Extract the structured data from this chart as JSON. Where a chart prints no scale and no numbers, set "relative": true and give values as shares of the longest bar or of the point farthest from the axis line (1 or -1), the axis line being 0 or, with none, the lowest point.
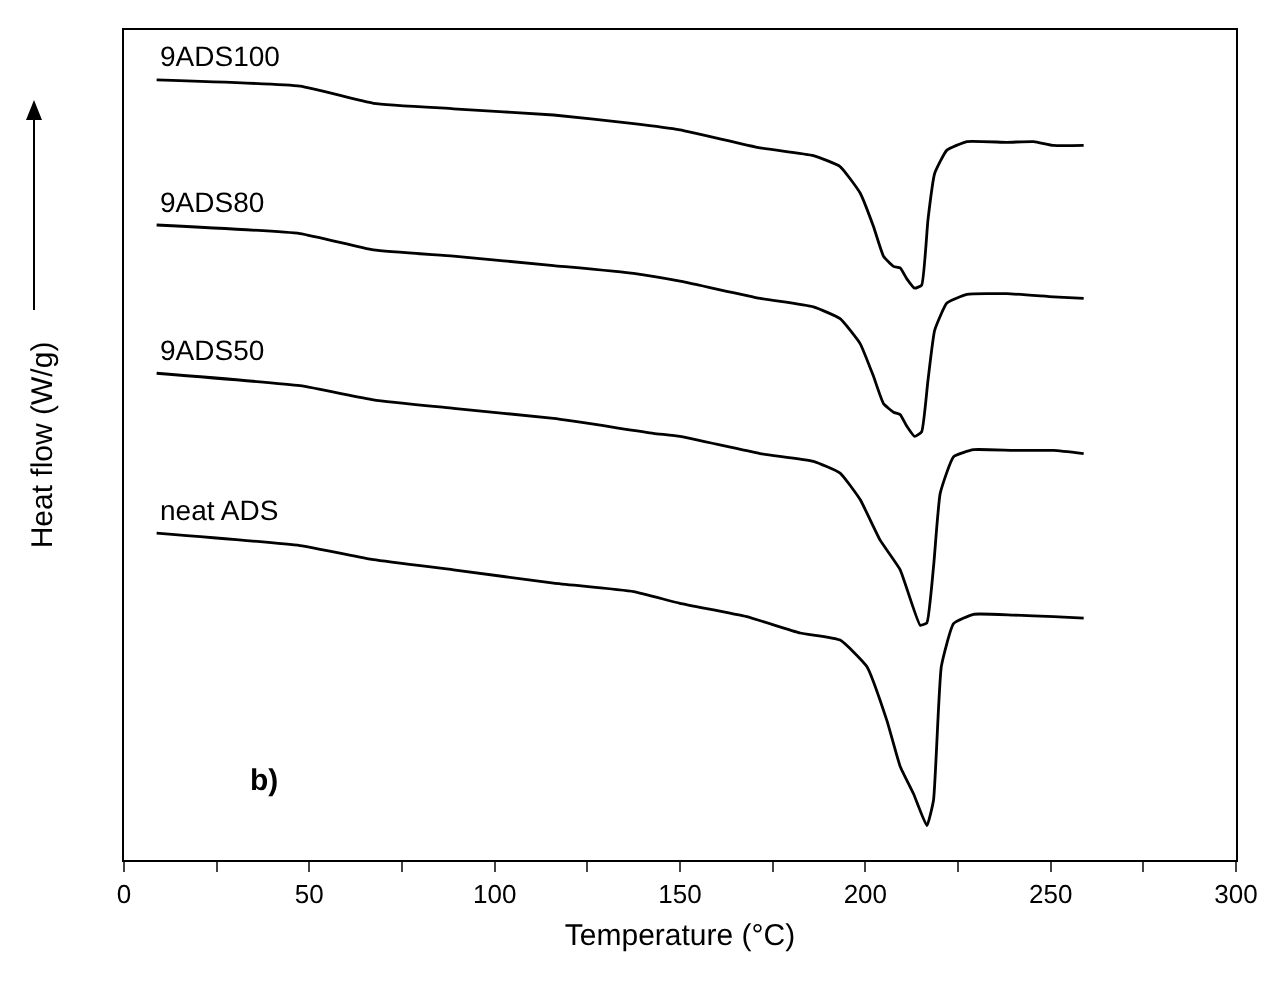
{
  "chart_data": {
    "type": "line",
    "relative": true,
    "xlabel": "Temperature (°C)",
    "ylabel": "Heat flow (W/g)",
    "xlim": [
      0,
      300
    ],
    "xticks": [
      0,
      {
        "value": 25,
        "label": null
      },
      50,
      {
        "value": 75,
        "label": null
      },
      100,
      {
        "value": 125,
        "label": null
      },
      150,
      {
        "value": 175,
        "label": null
      },
      200,
      {
        "value": 225,
        "label": null
      },
      250,
      {
        "value": 275,
        "label": null
      },
      300
    ],
    "tick_labels": "x",
    "grid": false,
    "legend": false,
    "marker": "none",
    "line_style": "solid",
    "annotations": [
      "b)"
    ],
    "series": [
      {
        "name": "9ADS100",
        "color": "#000000",
        "x": [
          8.8,
          47.5,
          67.3,
          88.9,
          115.9,
          137.5,
          150,
          171.6,
          186,
          193.2,
          198.6,
          202.2,
          204.9,
          207.6,
          209.4,
          211.2,
          213.3,
          215.2,
          216.9,
          218.7,
          222,
          227.4,
          238.2,
          245.4,
          250.8,
          258.9
        ],
        "values": [
          1.0,
          0.992,
          0.97,
          0.963,
          0.955,
          0.944,
          0.936,
          0.913,
          0.903,
          0.889,
          0.855,
          0.812,
          0.774,
          0.761,
          0.759,
          0.745,
          0.733,
          0.737,
          0.821,
          0.88,
          0.91,
          0.921,
          0.92,
          0.921,
          0.916,
          0.916
        ]
      },
      {
        "name": "9ADS80",
        "color": "#000000",
        "x": [
          8.8,
          47.5,
          67.3,
          88.9,
          115.9,
          137.5,
          150,
          171.6,
          186,
          193.2,
          198.6,
          202.2,
          204.9,
          207.6,
          209.4,
          211.2,
          213.3,
          215.2,
          216.9,
          218.7,
          222,
          227.4,
          238.2,
          250.8,
          258.9
        ],
        "values": [
          0.814,
          0.803,
          0.782,
          0.774,
          0.762,
          0.752,
          0.742,
          0.72,
          0.709,
          0.694,
          0.662,
          0.62,
          0.585,
          0.574,
          0.571,
          0.556,
          0.543,
          0.549,
          0.615,
          0.679,
          0.714,
          0.725,
          0.726,
          0.722,
          0.72
        ]
      },
      {
        "name": "9ADS50",
        "color": "#000000",
        "x": [
          8.8,
          47.5,
          67.3,
          88.9,
          115.9,
          142.8,
          150,
          171.6,
          186,
          193.2,
          198.6,
          204,
          209.4,
          214.8,
          216.6,
          218.4,
          220.2,
          223.8,
          229.2,
          240,
          250.8,
          258.9
        ],
        "values": [
          0.624,
          0.608,
          0.59,
          0.579,
          0.566,
          0.547,
          0.543,
          0.521,
          0.511,
          0.496,
          0.462,
          0.41,
          0.372,
          0.301,
          0.304,
          0.376,
          0.47,
          0.517,
          0.526,
          0.525,
          0.525,
          0.521
        ]
      },
      {
        "name": "neat ADS",
        "color": "#000000",
        "x": [
          8.8,
          47.5,
          67.3,
          88.9,
          115.9,
          137.5,
          150,
          168,
          182.4,
          193.2,
          200.4,
          205.8,
          209.4,
          213,
          216.6,
          218.4,
          220.5,
          223.8,
          229.2,
          240,
          250.8,
          258.9
        ],
        "values": [
          0.419,
          0.403,
          0.385,
          0.372,
          0.355,
          0.344,
          0.329,
          0.312,
          0.291,
          0.282,
          0.248,
          0.179,
          0.12,
          0.085,
          0.044,
          0.077,
          0.248,
          0.303,
          0.315,
          0.314,
          0.312,
          0.31
        ]
      }
    ]
  }
}
